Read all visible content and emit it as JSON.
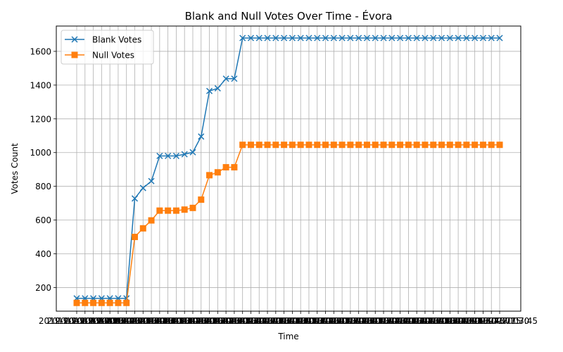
{
  "chart_data": {
    "type": "line",
    "title": "Blank and Null Votes Over Time - Évora",
    "xlabel": "Time",
    "ylabel": "Votes Count",
    "ylim": [
      60,
      1750
    ],
    "yticks": [
      200,
      400,
      600,
      800,
      1000,
      1200,
      1400,
      1600
    ],
    "grid": true,
    "legend_position": "top-left",
    "x": [
      "2019-10-06 19:00",
      "2019-10-06 19:15",
      "2019-10-06 19:30",
      "2019-10-06 19:45",
      "2019-10-06 20:00",
      "2019-10-06 20:15",
      "2019-10-06 20:30",
      "2019-10-06 20:45",
      "2019-10-06 21:00",
      "2019-10-06 21:15",
      "2019-10-06 21:30",
      "2019-10-06 21:45",
      "2019-10-06 22:00",
      "2019-10-06 22:15",
      "2019-10-06 22:30",
      "2019-10-06 22:45",
      "2019-10-06 23:00",
      "2019-10-06 23:15",
      "2019-10-06 23:30",
      "2019-10-06 23:45",
      "2019-10-07 00:00",
      "2019-10-07 00:15",
      "2019-10-07 00:30",
      "2019-10-07 00:45",
      "2019-10-07 01:00",
      "2019-10-07 01:15",
      "2019-10-07 01:30",
      "2019-10-07 01:45",
      "2019-10-07 02:00",
      "2019-10-07 02:15",
      "2019-10-07 02:30",
      "2019-10-07 02:45",
      "2019-10-07 03:00",
      "2019-10-07 03:15",
      "2019-10-07 03:30",
      "2019-10-07 03:45",
      "2019-10-07 04:00",
      "2019-10-07 04:15",
      "2019-10-07 04:30",
      "2019-10-07 04:45",
      "2019-10-07 05:00",
      "2019-10-07 05:15",
      "2019-10-07 05:30",
      "2019-10-07 05:45",
      "2019-10-07 06:00",
      "2019-10-07 06:15",
      "2019-10-07 06:30",
      "2019-10-07 06:45",
      "2019-10-07 07:00",
      "2019-10-07 07:15",
      "2019-10-07 07:30",
      "2019-10-07 07:45"
    ],
    "series": [
      {
        "name": "Blank Votes",
        "color": "#1f77b4",
        "marker": "x",
        "values": [
          136,
          136,
          136,
          136,
          136,
          136,
          136,
          728,
          790,
          831,
          980,
          980,
          980,
          990,
          1002,
          1095,
          1365,
          1381,
          1438,
          1438,
          1679,
          1679,
          1679,
          1679,
          1679,
          1679,
          1679,
          1679,
          1679,
          1679,
          1679,
          1679,
          1679,
          1679,
          1679,
          1679,
          1679,
          1679,
          1679,
          1679,
          1679,
          1679,
          1679,
          1679,
          1679,
          1679,
          1679,
          1679,
          1679,
          1679,
          1679,
          1679
        ]
      },
      {
        "name": "Null Votes",
        "color": "#ff7f0e",
        "marker": "s",
        "values": [
          109,
          109,
          109,
          109,
          109,
          109,
          109,
          500,
          551,
          598,
          656,
          656,
          656,
          662,
          672,
          721,
          866,
          883,
          913,
          913,
          1046,
          1046,
          1046,
          1046,
          1046,
          1046,
          1046,
          1046,
          1046,
          1046,
          1046,
          1046,
          1046,
          1046,
          1046,
          1046,
          1046,
          1046,
          1046,
          1046,
          1046,
          1046,
          1046,
          1046,
          1046,
          1046,
          1046,
          1046,
          1046,
          1046,
          1046,
          1046
        ]
      }
    ]
  }
}
